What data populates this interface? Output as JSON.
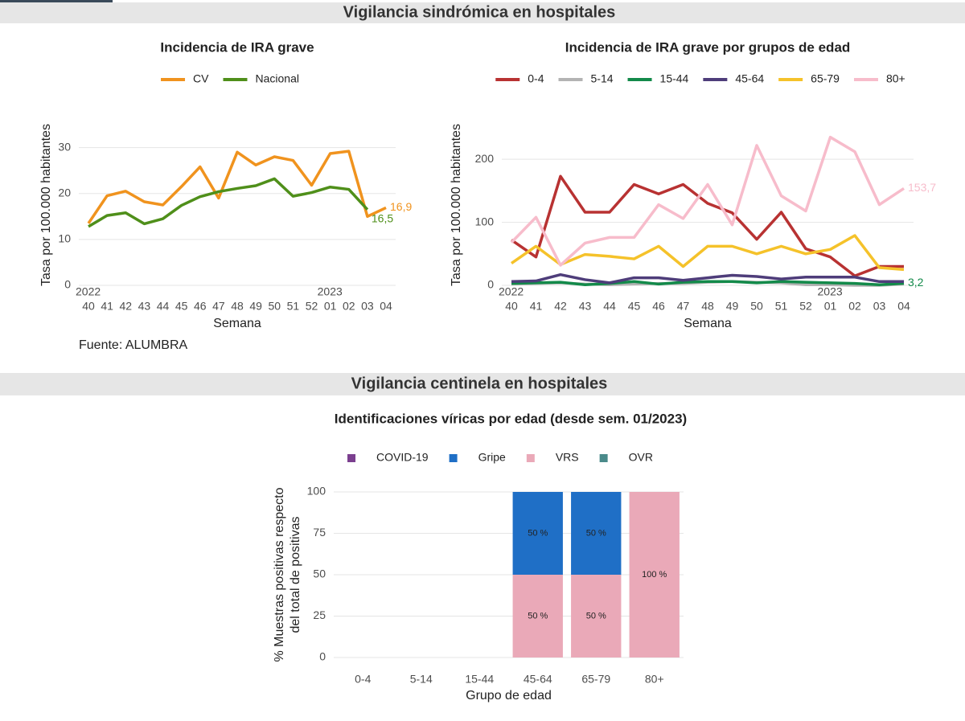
{
  "headers": [
    "Vigilancia sindrómica en hospitales",
    "Vigilancia centinela en hospitales"
  ],
  "source": "Fuente: ALUMBRA",
  "chart_data": [
    {
      "type": "line",
      "title": "Incidencia de IRA grave",
      "xlabel": "Semana",
      "ylabel": "Tasa por 100.000 habitantes",
      "categories": [
        "40",
        "41",
        "42",
        "43",
        "44",
        "45",
        "46",
        "47",
        "48",
        "49",
        "50",
        "51",
        "52",
        "01",
        "02",
        "03",
        "04"
      ],
      "x_annotations": [
        {
          "text": "2022",
          "category": "40"
        },
        {
          "text": "2023",
          "category": "01"
        }
      ],
      "ylim": [
        0,
        35
      ],
      "yticks": [
        0,
        10,
        20,
        30
      ],
      "grid": true,
      "series": [
        {
          "name": "CV",
          "color": "#f0931e",
          "values": [
            13.5,
            19.5,
            20.5,
            18.2,
            17.5,
            21.5,
            25.8,
            19,
            29,
            26.2,
            28,
            27.2,
            21.8,
            28.7,
            29.2,
            15,
            16.9
          ],
          "value_labels": [
            null,
            null,
            null,
            null,
            null,
            null,
            null,
            null,
            null,
            null,
            null,
            null,
            null,
            null,
            null,
            null,
            "16,9"
          ]
        },
        {
          "name": "Nacional",
          "color": "#4f8f1a",
          "values": [
            12.8,
            15.2,
            15.8,
            13.4,
            14.5,
            17.4,
            19.3,
            20.4,
            21.1,
            21.7,
            23.2,
            19.4,
            20.2,
            21.4,
            20.9,
            16.5,
            null
          ],
          "value_labels": [
            null,
            null,
            null,
            null,
            null,
            null,
            null,
            null,
            null,
            null,
            null,
            null,
            null,
            null,
            null,
            "16,5",
            null
          ]
        }
      ]
    },
    {
      "type": "line",
      "title": "Incidencia de IRA grave por grupos de edad",
      "xlabel": "Semana",
      "ylabel": "Tasa por 100.000 habitantes",
      "categories": [
        "40",
        "41",
        "42",
        "43",
        "44",
        "45",
        "46",
        "47",
        "48",
        "49",
        "50",
        "51",
        "52",
        "01",
        "02",
        "03",
        "04"
      ],
      "x_annotations": [
        {
          "text": "2022",
          "category": "40"
        },
        {
          "text": "2023",
          "category": "01"
        }
      ],
      "ylim": [
        0,
        255
      ],
      "yticks": [
        0,
        100,
        200
      ],
      "grid": true,
      "series": [
        {
          "name": "0-4",
          "color": "#b83232",
          "values": [
            72,
            45,
            173,
            116,
            116,
            160,
            145,
            160,
            130,
            115,
            73,
            116,
            58,
            45,
            15,
            30,
            30
          ]
        },
        {
          "name": "5-14",
          "color": "#b3b3b3",
          "values": [
            2,
            3,
            4,
            2,
            1,
            2,
            3,
            3,
            5,
            6,
            5,
            4,
            1,
            1,
            0,
            0,
            2
          ]
        },
        {
          "name": "15-44",
          "color": "#138a4a",
          "values": [
            3,
            4,
            5,
            1,
            3,
            6,
            2,
            5,
            6,
            6,
            4,
            6,
            5,
            4,
            3,
            1,
            3.2
          ],
          "value_labels": [
            null,
            null,
            null,
            null,
            null,
            null,
            null,
            null,
            null,
            null,
            null,
            null,
            null,
            null,
            null,
            null,
            "3,2"
          ]
        },
        {
          "name": "45-64",
          "color": "#4e3d7a",
          "values": [
            6,
            7,
            17,
            9,
            4,
            12,
            12,
            8,
            12,
            16,
            14,
            10,
            13,
            13,
            13,
            6,
            6
          ]
        },
        {
          "name": "65-79",
          "color": "#f5c22a",
          "values": [
            35,
            62,
            33,
            49,
            46,
            42,
            62,
            30,
            62,
            62,
            50,
            62,
            50,
            57,
            79,
            28,
            25
          ]
        },
        {
          "name": "80+",
          "color": "#f7bccb",
          "values": [
            68,
            108,
            32,
            67,
            76,
            76,
            128,
            106,
            160,
            96,
            222,
            142,
            118,
            235,
            212,
            128,
            153.7
          ],
          "value_labels": [
            null,
            null,
            null,
            null,
            null,
            null,
            null,
            null,
            null,
            null,
            null,
            null,
            null,
            null,
            null,
            null,
            "153,7"
          ]
        }
      ]
    },
    {
      "type": "stacked_bar",
      "title": "Identificaciones víricas por edad (desde sem. 01/2023)",
      "xlabel": "Grupo de edad",
      "ylabel": [
        "% Muestras positivas respecto",
        "del total de positivas"
      ],
      "categories": [
        "0-4",
        "5-14",
        "15-44",
        "45-64",
        "65-79",
        "80+"
      ],
      "ylim": [
        0,
        100
      ],
      "yticks": [
        0,
        25,
        50,
        75,
        100
      ],
      "grid": true,
      "series": [
        {
          "name": "COVID-19",
          "color": "#7b3f8f",
          "values": [
            0,
            0,
            0,
            0,
            0,
            0
          ]
        },
        {
          "name": "Gripe",
          "color": "#1f6fc6",
          "values": [
            0,
            0,
            0,
            50,
            50,
            0
          ],
          "value_labels": [
            null,
            null,
            null,
            "50 %",
            "50 %",
            null
          ]
        },
        {
          "name": "VRS",
          "color": "#eaa9b8",
          "values": [
            0,
            0,
            0,
            50,
            50,
            100
          ],
          "value_labels": [
            null,
            null,
            null,
            "50 %",
            "50 %",
            "100 %"
          ]
        },
        {
          "name": "OVR",
          "color": "#4a8a8a",
          "values": [
            0,
            0,
            0,
            0,
            0,
            0
          ]
        }
      ]
    }
  ]
}
